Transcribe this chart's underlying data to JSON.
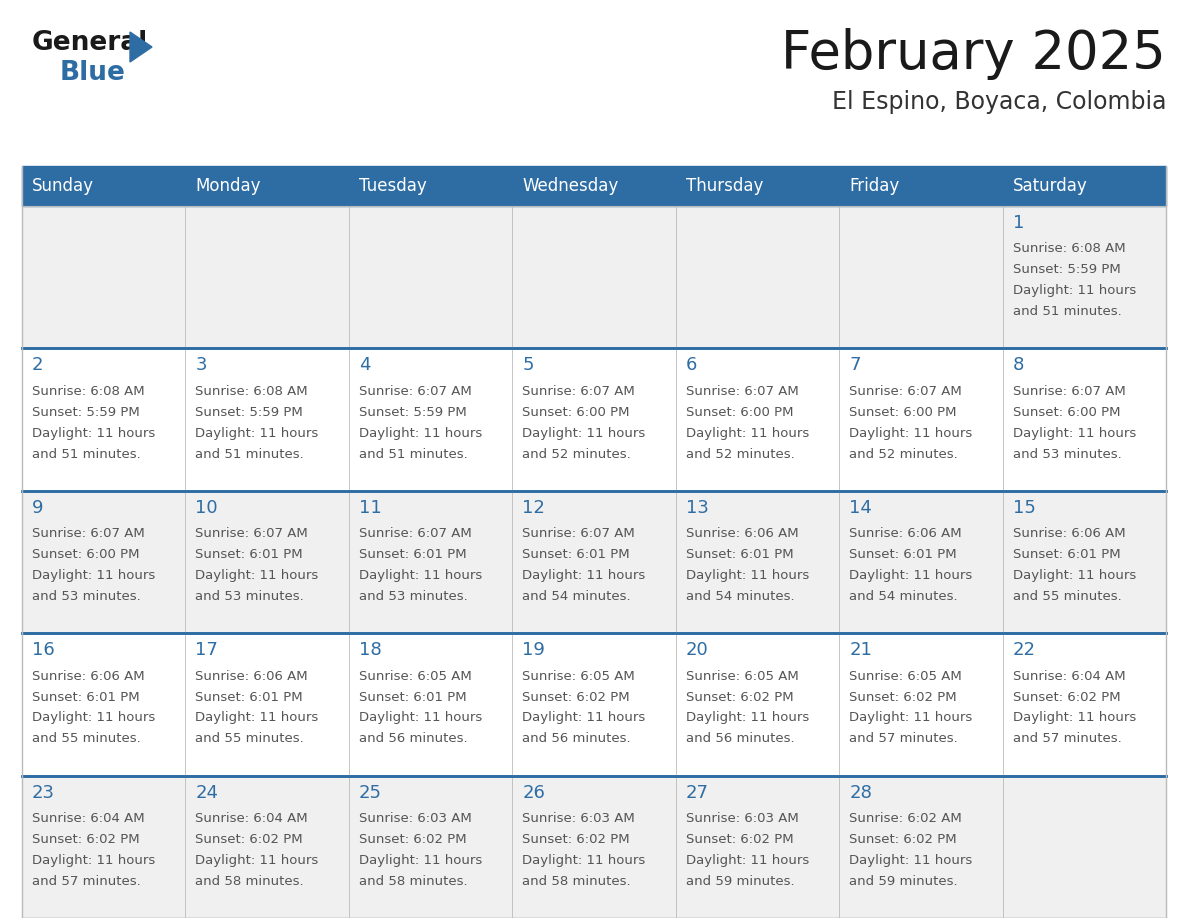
{
  "title": "February 2025",
  "subtitle": "El Espino, Boyaca, Colombia",
  "days_of_week": [
    "Sunday",
    "Monday",
    "Tuesday",
    "Wednesday",
    "Thursday",
    "Friday",
    "Saturday"
  ],
  "header_bg": "#2E6DA4",
  "header_text": "#FFFFFF",
  "cell_bg_light": "#F0F0F0",
  "cell_bg_white": "#FFFFFF",
  "row_divider_color": "#2E6DA4",
  "cell_border_color": "#BBBBBB",
  "day_number_color": "#2E6DA4",
  "info_text_color": "#555555",
  "title_color": "#1A1A1A",
  "subtitle_color": "#333333",
  "logo_general_color": "#1A1A1A",
  "logo_blue_color": "#2E6DA4",
  "calendar_data": [
    {
      "day": 1,
      "row": 0,
      "col": 6,
      "sunrise": "6:08 AM",
      "sunset": "5:59 PM",
      "daylight_hours": 11,
      "daylight_minutes": 51
    },
    {
      "day": 2,
      "row": 1,
      "col": 0,
      "sunrise": "6:08 AM",
      "sunset": "5:59 PM",
      "daylight_hours": 11,
      "daylight_minutes": 51
    },
    {
      "day": 3,
      "row": 1,
      "col": 1,
      "sunrise": "6:08 AM",
      "sunset": "5:59 PM",
      "daylight_hours": 11,
      "daylight_minutes": 51
    },
    {
      "day": 4,
      "row": 1,
      "col": 2,
      "sunrise": "6:07 AM",
      "sunset": "5:59 PM",
      "daylight_hours": 11,
      "daylight_minutes": 51
    },
    {
      "day": 5,
      "row": 1,
      "col": 3,
      "sunrise": "6:07 AM",
      "sunset": "6:00 PM",
      "daylight_hours": 11,
      "daylight_minutes": 52
    },
    {
      "day": 6,
      "row": 1,
      "col": 4,
      "sunrise": "6:07 AM",
      "sunset": "6:00 PM",
      "daylight_hours": 11,
      "daylight_minutes": 52
    },
    {
      "day": 7,
      "row": 1,
      "col": 5,
      "sunrise": "6:07 AM",
      "sunset": "6:00 PM",
      "daylight_hours": 11,
      "daylight_minutes": 52
    },
    {
      "day": 8,
      "row": 1,
      "col": 6,
      "sunrise": "6:07 AM",
      "sunset": "6:00 PM",
      "daylight_hours": 11,
      "daylight_minutes": 53
    },
    {
      "day": 9,
      "row": 2,
      "col": 0,
      "sunrise": "6:07 AM",
      "sunset": "6:00 PM",
      "daylight_hours": 11,
      "daylight_minutes": 53
    },
    {
      "day": 10,
      "row": 2,
      "col": 1,
      "sunrise": "6:07 AM",
      "sunset": "6:01 PM",
      "daylight_hours": 11,
      "daylight_minutes": 53
    },
    {
      "day": 11,
      "row": 2,
      "col": 2,
      "sunrise": "6:07 AM",
      "sunset": "6:01 PM",
      "daylight_hours": 11,
      "daylight_minutes": 53
    },
    {
      "day": 12,
      "row": 2,
      "col": 3,
      "sunrise": "6:07 AM",
      "sunset": "6:01 PM",
      "daylight_hours": 11,
      "daylight_minutes": 54
    },
    {
      "day": 13,
      "row": 2,
      "col": 4,
      "sunrise": "6:06 AM",
      "sunset": "6:01 PM",
      "daylight_hours": 11,
      "daylight_minutes": 54
    },
    {
      "day": 14,
      "row": 2,
      "col": 5,
      "sunrise": "6:06 AM",
      "sunset": "6:01 PM",
      "daylight_hours": 11,
      "daylight_minutes": 54
    },
    {
      "day": 15,
      "row": 2,
      "col": 6,
      "sunrise": "6:06 AM",
      "sunset": "6:01 PM",
      "daylight_hours": 11,
      "daylight_minutes": 55
    },
    {
      "day": 16,
      "row": 3,
      "col": 0,
      "sunrise": "6:06 AM",
      "sunset": "6:01 PM",
      "daylight_hours": 11,
      "daylight_minutes": 55
    },
    {
      "day": 17,
      "row": 3,
      "col": 1,
      "sunrise": "6:06 AM",
      "sunset": "6:01 PM",
      "daylight_hours": 11,
      "daylight_minutes": 55
    },
    {
      "day": 18,
      "row": 3,
      "col": 2,
      "sunrise": "6:05 AM",
      "sunset": "6:01 PM",
      "daylight_hours": 11,
      "daylight_minutes": 56
    },
    {
      "day": 19,
      "row": 3,
      "col": 3,
      "sunrise": "6:05 AM",
      "sunset": "6:02 PM",
      "daylight_hours": 11,
      "daylight_minutes": 56
    },
    {
      "day": 20,
      "row": 3,
      "col": 4,
      "sunrise": "6:05 AM",
      "sunset": "6:02 PM",
      "daylight_hours": 11,
      "daylight_minutes": 56
    },
    {
      "day": 21,
      "row": 3,
      "col": 5,
      "sunrise": "6:05 AM",
      "sunset": "6:02 PM",
      "daylight_hours": 11,
      "daylight_minutes": 57
    },
    {
      "day": 22,
      "row": 3,
      "col": 6,
      "sunrise": "6:04 AM",
      "sunset": "6:02 PM",
      "daylight_hours": 11,
      "daylight_minutes": 57
    },
    {
      "day": 23,
      "row": 4,
      "col": 0,
      "sunrise": "6:04 AM",
      "sunset": "6:02 PM",
      "daylight_hours": 11,
      "daylight_minutes": 57
    },
    {
      "day": 24,
      "row": 4,
      "col": 1,
      "sunrise": "6:04 AM",
      "sunset": "6:02 PM",
      "daylight_hours": 11,
      "daylight_minutes": 58
    },
    {
      "day": 25,
      "row": 4,
      "col": 2,
      "sunrise": "6:03 AM",
      "sunset": "6:02 PM",
      "daylight_hours": 11,
      "daylight_minutes": 58
    },
    {
      "day": 26,
      "row": 4,
      "col": 3,
      "sunrise": "6:03 AM",
      "sunset": "6:02 PM",
      "daylight_hours": 11,
      "daylight_minutes": 58
    },
    {
      "day": 27,
      "row": 4,
      "col": 4,
      "sunrise": "6:03 AM",
      "sunset": "6:02 PM",
      "daylight_hours": 11,
      "daylight_minutes": 59
    },
    {
      "day": 28,
      "row": 4,
      "col": 5,
      "sunrise": "6:02 AM",
      "sunset": "6:02 PM",
      "daylight_hours": 11,
      "daylight_minutes": 59
    }
  ]
}
